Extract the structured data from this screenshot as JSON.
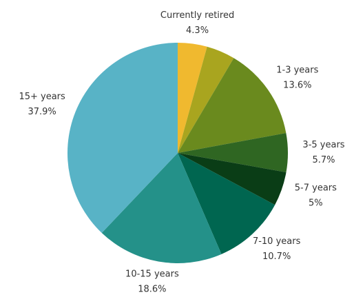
{
  "chart_data": {
    "type": "pie",
    "categories": [
      "Currently retired",
      null,
      "1-3 years",
      "3-5 years",
      "5-7 years",
      "7-10 years",
      "10-15 years",
      "15+ years"
    ],
    "values": [
      4.3,
      4.2,
      13.6,
      5.7,
      5,
      10.7,
      18.6,
      37.9
    ],
    "value_labels": [
      "4.3%",
      null,
      "13.6%",
      "5.7%",
      "5%",
      "10.7%",
      "18.6%",
      "37.9%"
    ],
    "colors": [
      "#f0b92f",
      "#a9a51f",
      "#6a8a1e",
      "#2f6622",
      "#0a3d16",
      "#006650",
      "#249189",
      "#58b3c6"
    ]
  }
}
